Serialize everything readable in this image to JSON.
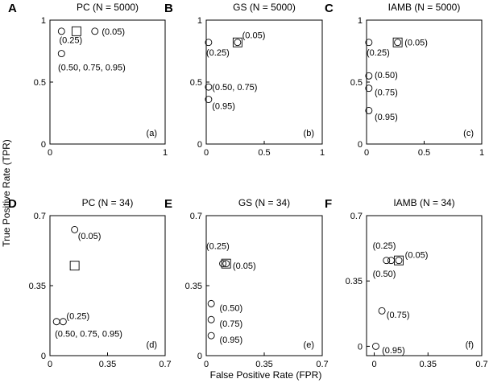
{
  "figure": {
    "xlabel": "False Positive Rate (FPR)",
    "ylabel": "True Positive Rate (TPR)"
  },
  "chart_data": [
    {
      "type": "scatter",
      "letter": "A",
      "title": "PC (N = 5000)",
      "corner_label": "(a)",
      "xlim": [
        0,
        1
      ],
      "ylim": [
        0,
        1
      ],
      "xticks": [
        {
          "v": 0,
          "t": "0"
        },
        {
          "v": 1,
          "t": "1"
        }
      ],
      "yticks": [
        {
          "v": 0,
          "t": "0"
        },
        {
          "v": 0.5,
          "t": "0.5"
        },
        {
          "v": 1,
          "t": "1"
        }
      ],
      "points": [
        {
          "x": 0.1,
          "y": 0.91,
          "shape": "circle"
        },
        {
          "x": 0.39,
          "y": 0.91,
          "shape": "circle"
        },
        {
          "x": 0.1,
          "y": 0.73,
          "shape": "circle"
        },
        {
          "x": 0.23,
          "y": 0.91,
          "shape": "square"
        }
      ],
      "annotations": [
        {
          "x": 0.08,
          "y": 0.84,
          "text": "(0.25)"
        },
        {
          "x": 0.45,
          "y": 0.91,
          "text": "(0.05)"
        },
        {
          "x": 0.07,
          "y": 0.62,
          "text": "(0.50, 0.75, 0.95)"
        }
      ]
    },
    {
      "type": "scatter",
      "letter": "B",
      "title": "GS (N = 5000)",
      "corner_label": "(b)",
      "xlim": [
        0,
        1
      ],
      "ylim": [
        0,
        1
      ],
      "xticks": [
        {
          "v": 0,
          "t": "0"
        },
        {
          "v": 0.5,
          "t": "0.5"
        },
        {
          "v": 1,
          "t": "1"
        }
      ],
      "yticks": [
        {
          "v": 0,
          "t": "0"
        },
        {
          "v": 0.5,
          "t": "0.5"
        },
        {
          "v": 1,
          "t": "1"
        }
      ],
      "points": [
        {
          "x": 0.02,
          "y": 0.82,
          "shape": "circle"
        },
        {
          "x": 0.27,
          "y": 0.82,
          "shape": "circle"
        },
        {
          "x": 0.27,
          "y": 0.82,
          "shape": "square"
        },
        {
          "x": 0.02,
          "y": 0.46,
          "shape": "circle"
        },
        {
          "x": 0.02,
          "y": 0.36,
          "shape": "circle"
        }
      ],
      "annotations": [
        {
          "x": 0.0,
          "y": 0.74,
          "text": "(0.25)"
        },
        {
          "x": 0.31,
          "y": 0.88,
          "text": "(0.05)"
        },
        {
          "x": 0.05,
          "y": 0.46,
          "text": "(0.50, 0.75)"
        },
        {
          "x": 0.05,
          "y": 0.31,
          "text": "(0.95)"
        }
      ]
    },
    {
      "type": "scatter",
      "letter": "C",
      "title": "IAMB (N = 5000)",
      "corner_label": "(c)",
      "xlim": [
        0,
        1
      ],
      "ylim": [
        0,
        1
      ],
      "xticks": [
        {
          "v": 0,
          "t": "0"
        },
        {
          "v": 0.5,
          "t": "0.5"
        },
        {
          "v": 1,
          "t": "1"
        }
      ],
      "yticks": [
        {
          "v": 0,
          "t": "0"
        },
        {
          "v": 0.5,
          "t": "0.5"
        },
        {
          "v": 1,
          "t": "1"
        }
      ],
      "points": [
        {
          "x": 0.02,
          "y": 0.82,
          "shape": "circle"
        },
        {
          "x": 0.27,
          "y": 0.82,
          "shape": "circle"
        },
        {
          "x": 0.27,
          "y": 0.82,
          "shape": "square"
        },
        {
          "x": 0.02,
          "y": 0.55,
          "shape": "circle"
        },
        {
          "x": 0.02,
          "y": 0.45,
          "shape": "circle"
        },
        {
          "x": 0.02,
          "y": 0.27,
          "shape": "circle"
        }
      ],
      "annotations": [
        {
          "x": 0.0,
          "y": 0.74,
          "text": "(0.25)"
        },
        {
          "x": 0.33,
          "y": 0.82,
          "text": "(0.05)"
        },
        {
          "x": 0.07,
          "y": 0.56,
          "text": "(0.50)"
        },
        {
          "x": 0.07,
          "y": 0.42,
          "text": "(0.75)"
        },
        {
          "x": 0.07,
          "y": 0.22,
          "text": "(0.95)"
        }
      ]
    },
    {
      "type": "scatter",
      "letter": "D",
      "title": "PC (N = 34)",
      "corner_label": "(d)",
      "xlim": [
        0,
        0.7
      ],
      "ylim": [
        0,
        0.7
      ],
      "xticks": [
        {
          "v": 0,
          "t": "0"
        },
        {
          "v": 0.35,
          "t": "0.35"
        },
        {
          "v": 0.7,
          "t": "0.7"
        }
      ],
      "yticks": [
        {
          "v": 0,
          "t": "0"
        },
        {
          "v": 0.35,
          "t": "0.35"
        },
        {
          "v": 0.7,
          "t": "0.7"
        }
      ],
      "points": [
        {
          "x": 0.15,
          "y": 0.63,
          "shape": "circle"
        },
        {
          "x": 0.15,
          "y": 0.45,
          "shape": "square"
        },
        {
          "x": 0.04,
          "y": 0.17,
          "shape": "circle"
        },
        {
          "x": 0.08,
          "y": 0.17,
          "shape": "circle"
        }
      ],
      "annotations": [
        {
          "x": 0.17,
          "y": 0.6,
          "text": "(0.05)"
        },
        {
          "x": 0.1,
          "y": 0.2,
          "text": "(0.25)"
        },
        {
          "x": 0.03,
          "y": 0.11,
          "text": "(0.50, 0.75, 0.95)"
        }
      ]
    },
    {
      "type": "scatter",
      "letter": "E",
      "title": "GS (N = 34)",
      "corner_label": "(e)",
      "xlim": [
        0,
        0.7
      ],
      "ylim": [
        0,
        0.7
      ],
      "xticks": [
        {
          "v": 0,
          "t": "0"
        },
        {
          "v": 0.35,
          "t": "0.35"
        },
        {
          "v": 0.7,
          "t": "0.7"
        }
      ],
      "yticks": [
        {
          "v": 0,
          "t": "0"
        },
        {
          "v": 0.35,
          "t": "0.35"
        },
        {
          "v": 0.7,
          "t": "0.7"
        }
      ],
      "points": [
        {
          "x": 0.1,
          "y": 0.46,
          "shape": "circle"
        },
        {
          "x": 0.12,
          "y": 0.46,
          "shape": "circle"
        },
        {
          "x": 0.12,
          "y": 0.46,
          "shape": "square"
        },
        {
          "x": 0.03,
          "y": 0.26,
          "shape": "circle"
        },
        {
          "x": 0.03,
          "y": 0.18,
          "shape": "circle"
        },
        {
          "x": 0.03,
          "y": 0.1,
          "shape": "circle"
        }
      ],
      "annotations": [
        {
          "x": 0.0,
          "y": 0.55,
          "text": "(0.25)"
        },
        {
          "x": 0.16,
          "y": 0.45,
          "text": "(0.05)"
        },
        {
          "x": 0.08,
          "y": 0.24,
          "text": "(0.50)"
        },
        {
          "x": 0.08,
          "y": 0.16,
          "text": "(0.75)"
        },
        {
          "x": 0.08,
          "y": 0.08,
          "text": "(0.95)"
        }
      ]
    },
    {
      "type": "scatter",
      "letter": "F",
      "title": "IAMB (N = 34)",
      "corner_label": "(f)",
      "xlim": [
        -0.05,
        0.7
      ],
      "ylim": [
        -0.05,
        0.7
      ],
      "xticks": [
        {
          "v": 0,
          "t": "0"
        },
        {
          "v": 0.35,
          "t": "0.35"
        },
        {
          "v": 0.7,
          "t": "0.7"
        }
      ],
      "yticks": [
        {
          "v": 0,
          "t": "0"
        },
        {
          "v": 0.35,
          "t": "0.35"
        },
        {
          "v": 0.7,
          "t": "0.7"
        }
      ],
      "points": [
        {
          "x": 0.08,
          "y": 0.46,
          "shape": "circle"
        },
        {
          "x": 0.11,
          "y": 0.46,
          "shape": "circle"
        },
        {
          "x": 0.16,
          "y": 0.46,
          "shape": "circle"
        },
        {
          "x": 0.16,
          "y": 0.46,
          "shape": "square"
        },
        {
          "x": 0.05,
          "y": 0.19,
          "shape": "circle"
        },
        {
          "x": 0.01,
          "y": 0.0,
          "shape": "circle"
        }
      ],
      "annotations": [
        {
          "x": -0.01,
          "y": 0.54,
          "text": "(0.25)"
        },
        {
          "x": 0.2,
          "y": 0.49,
          "text": "(0.05)"
        },
        {
          "x": -0.01,
          "y": 0.39,
          "text": "(0.50)"
        },
        {
          "x": 0.08,
          "y": 0.17,
          "text": "(0.75)"
        },
        {
          "x": 0.05,
          "y": -0.02,
          "text": "(0.95)"
        }
      ]
    }
  ]
}
